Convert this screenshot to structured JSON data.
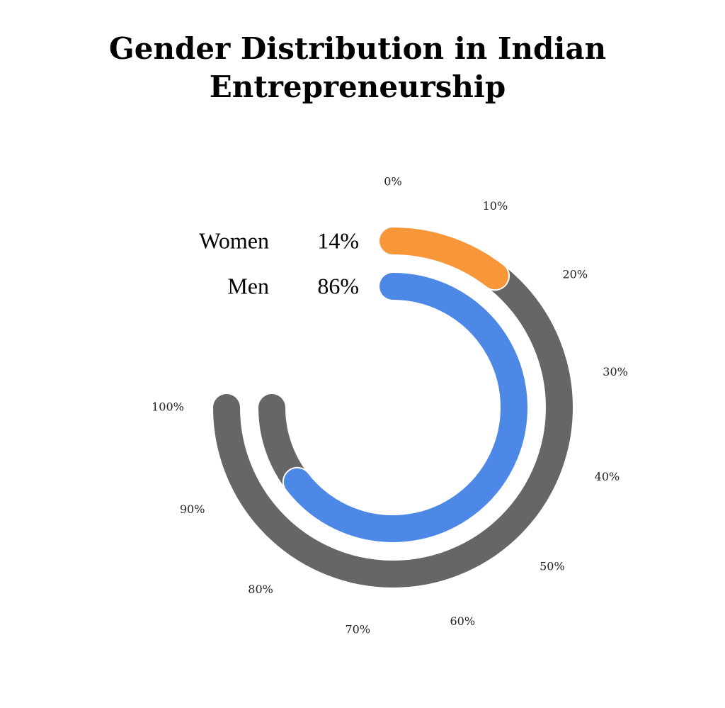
{
  "chart_data": {
    "type": "radial_bar",
    "title": "Gender Distribution in Indian Entrepreneurship",
    "categories": [
      "Women",
      "Men"
    ],
    "values": [
      14,
      86
    ],
    "value_labels": [
      "14%",
      "86%"
    ],
    "colors": [
      "#f7973a",
      "#4e88e6"
    ],
    "track_color": "#666666",
    "xlim": [
      0,
      100
    ],
    "xticks": [
      {
        "value": 0,
        "label": "0%"
      },
      {
        "value": 10,
        "label": "10%"
      },
      {
        "value": 20,
        "label": "20%"
      },
      {
        "value": 30,
        "label": "30%"
      },
      {
        "value": 40,
        "label": "40%"
      },
      {
        "value": 50,
        "label": "50%"
      },
      {
        "value": 60,
        "label": "60%"
      },
      {
        "value": 70,
        "label": "70%"
      },
      {
        "value": 80,
        "label": "80%"
      },
      {
        "value": 90,
        "label": "90%"
      },
      {
        "value": 100,
        "label": "100%"
      }
    ]
  }
}
